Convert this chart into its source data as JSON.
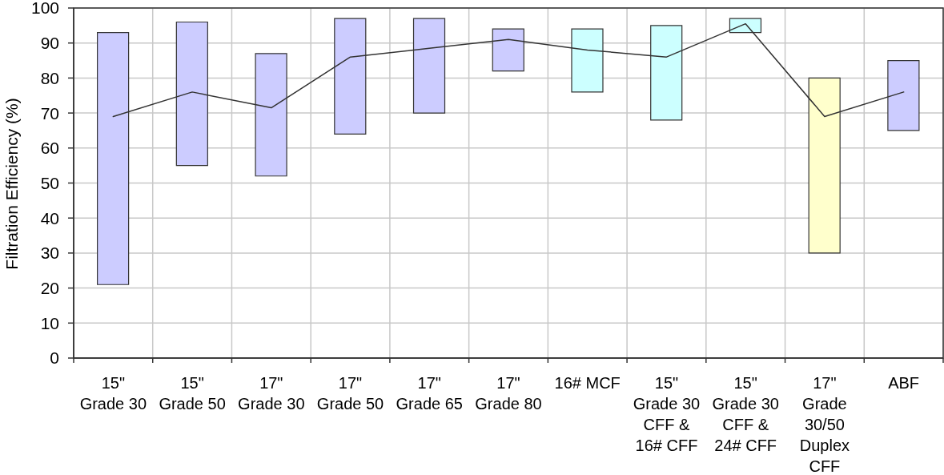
{
  "chart_data": {
    "type": "bar",
    "ylabel": "Filtration Efficiency (%)",
    "categories": [
      "15\"\nGrade 30",
      "15\"\nGrade 50",
      "17\"\nGrade 30",
      "17\"\nGrade 50",
      "17\"\nGrade 65",
      "17\"\nGrade 80",
      "16# MCF",
      "15\"\nGrade 30\nCFF &\n16# CFF",
      "15\"\nGrade 30\nCFF &\n24# CFF",
      "17\"\nGrade\n30/50\nDuplex\nCFF",
      "ABF"
    ],
    "series": [
      {
        "base": [
          21,
          55,
          52,
          64,
          70,
          82,
          76,
          68,
          93,
          30,
          65
        ],
        "values": [
          72,
          41,
          35,
          33,
          27,
          12,
          18,
          27,
          4,
          50,
          20
        ],
        "colors": [
          "#ccccff",
          "#ccccff",
          "#ccccff",
          "#ccccff",
          "#ccccff",
          "#ccccff",
          "#ccffff",
          "#ccffff",
          "#ccffff",
          "#ffffcc",
          "#ccccff"
        ]
      },
      {
        "type": "line",
        "values": [
          69,
          76,
          71.5,
          86,
          88.5,
          91,
          88,
          86,
          95.5,
          69,
          76
        ],
        "color": "#333333",
        "marker": "none"
      }
    ],
    "ylim": [
      0,
      100
    ],
    "yticks": [
      0,
      10,
      20,
      30,
      40,
      50,
      60,
      70,
      80,
      90,
      100
    ],
    "grid": true
  }
}
